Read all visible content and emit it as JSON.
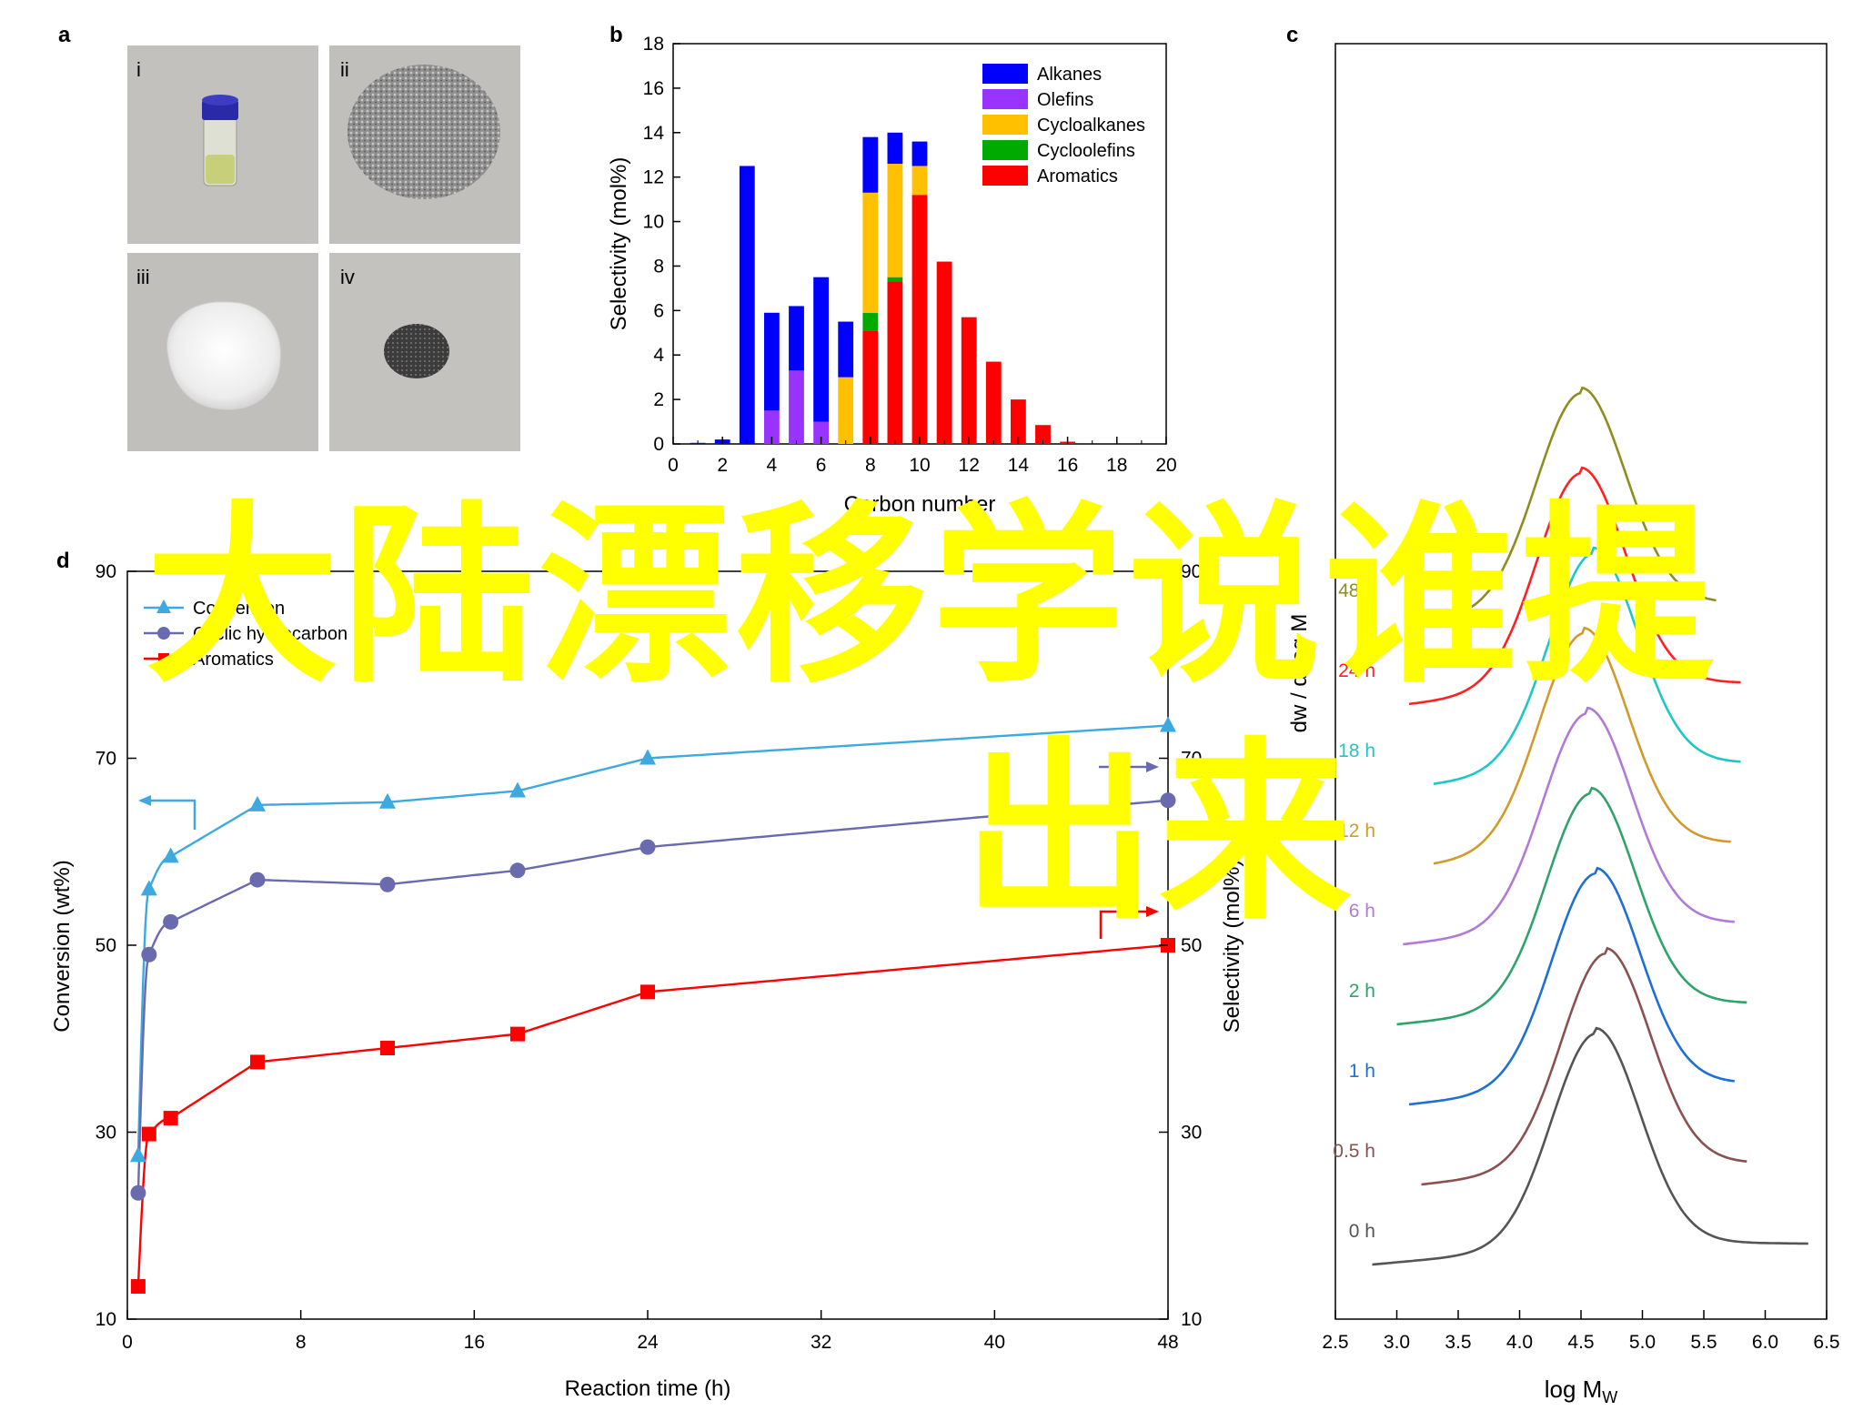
{
  "panel_labels": {
    "a": "a",
    "b": "b",
    "c": "c",
    "d": "d"
  },
  "panel_a": {
    "photos": [
      {
        "label": "i",
        "subject": "vial-with-liquid"
      },
      {
        "label": "ii",
        "subject": "grey-powder-pile"
      },
      {
        "label": "iii",
        "subject": "white-powder-pile"
      },
      {
        "label": "iv",
        "subject": "dark-powder-pile"
      }
    ]
  },
  "overlay": {
    "line1": "大陆漂移学说谁提",
    "line2": "出来",
    "color": "#ffff00"
  },
  "chart_data": [
    {
      "type": "bar",
      "panel": "b",
      "xlabel": "Carbon number",
      "ylabel": "Selectivity (mol%)",
      "xlim": [
        0,
        20
      ],
      "ylim": [
        0,
        18
      ],
      "xticks": [
        0,
        2,
        4,
        6,
        8,
        10,
        12,
        14,
        16,
        18,
        20
      ],
      "yticks": [
        0,
        2,
        4,
        6,
        8,
        10,
        12,
        14,
        16,
        18
      ],
      "stacked": true,
      "legend_position": "top-right",
      "categories": [
        1,
        2,
        3,
        4,
        5,
        6,
        7,
        8,
        9,
        10,
        11,
        12,
        13,
        14,
        15,
        16,
        17,
        18,
        19
      ],
      "series": [
        {
          "name": "Aromatics",
          "color": "#ff0000",
          "values": [
            0,
            0,
            0,
            0,
            0,
            0,
            0,
            5.1,
            7.3,
            11.2,
            8.2,
            5.7,
            3.7,
            2.0,
            0.85,
            0.1,
            0,
            0,
            0
          ]
        },
        {
          "name": "Cycloolefins",
          "color": "#00aa00",
          "values": [
            0,
            0,
            0,
            0,
            0,
            0,
            0,
            0.8,
            0.2,
            0,
            0,
            0,
            0,
            0,
            0,
            0,
            0,
            0,
            0
          ]
        },
        {
          "name": "Cycloalkanes",
          "color": "#ffc000",
          "values": [
            0,
            0,
            0,
            0,
            0,
            0,
            3.0,
            5.4,
            5.1,
            1.3,
            0,
            0,
            0,
            0,
            0,
            0,
            0,
            0,
            0
          ]
        },
        {
          "name": "Olefins",
          "color": "#9933ff",
          "values": [
            0,
            0,
            0,
            1.5,
            3.3,
            1.0,
            0,
            0,
            0,
            0,
            0,
            0,
            0,
            0,
            0,
            0,
            0,
            0,
            0
          ]
        },
        {
          "name": "Alkanes",
          "color": "#0000ff",
          "values": [
            0.05,
            0.2,
            12.5,
            4.4,
            2.9,
            6.5,
            2.5,
            2.5,
            1.4,
            1.1,
            0,
            0,
            0,
            0,
            0,
            0,
            0,
            0,
            0
          ]
        }
      ]
    },
    {
      "type": "line",
      "panel": "c",
      "xlabel": "log M",
      "xlabel_sub": "W",
      "ylabel": "dw / d(log M",
      "xlim": [
        2.5,
        6.5
      ],
      "xticks": [
        "2.5",
        "3.0",
        "3.5",
        "4.0",
        "4.5",
        "5.0",
        "5.5",
        "6.0",
        "6.5"
      ],
      "series": [
        {
          "name": "0 h",
          "color": "#555555",
          "xrange": [
            2.8,
            6.35
          ],
          "peak_x": 4.62
        },
        {
          "name": "0.5 h",
          "color": "#8b5050",
          "xrange": [
            3.2,
            5.85
          ],
          "peak_x": 4.7
        },
        {
          "name": "1 h",
          "color": "#1f6fd6",
          "xrange": [
            3.1,
            5.75
          ],
          "peak_x": 4.62
        },
        {
          "name": "2 h",
          "color": "#2ea36b",
          "xrange": [
            3.0,
            5.85
          ],
          "peak_x": 4.58
        },
        {
          "name": "6 h",
          "color": "#b07ad6",
          "xrange": [
            3.05,
            5.75
          ],
          "peak_x": 4.55
        },
        {
          "name": "12 h",
          "color": "#d19a2a",
          "xrange": [
            3.3,
            5.72
          ],
          "peak_x": 4.52
        },
        {
          "name": "18 h",
          "color": "#20c6c6",
          "xrange": [
            3.3,
            5.8
          ],
          "peak_x": 4.6
        },
        {
          "name": "24 h",
          "color": "#ff2020",
          "xrange": [
            3.1,
            5.8
          ],
          "peak_x": 4.5
        },
        {
          "name": "48 h",
          "color": "#8e8e1e",
          "xrange": [
            3.1,
            5.6
          ],
          "peak_x": 4.5
        }
      ]
    },
    {
      "type": "scatter",
      "panel": "d",
      "xlabel": "Reaction time (h)",
      "ylabel": "Conversion (wt%)",
      "ylabel_right": "Selectivity (mol%)",
      "xlim": [
        0,
        48
      ],
      "ylim": [
        10,
        90
      ],
      "xticks": [
        0,
        8,
        16,
        24,
        32,
        40,
        48
      ],
      "yticks": [
        10,
        30,
        50,
        70,
        90
      ],
      "legend_position": "top-left",
      "x": [
        0.5,
        1,
        2,
        6,
        12,
        18,
        24,
        48
      ],
      "series": [
        {
          "name": "Conversion",
          "axis": "left",
          "marker": "triangle",
          "color": "#3da9e0",
          "values": [
            27.5,
            56,
            59.5,
            65,
            65.3,
            66.5,
            70,
            73.5
          ]
        },
        {
          "name": "Cyclic hydrocarbon",
          "axis": "right",
          "marker": "circle",
          "color": "#6a6aaf",
          "values": [
            23.5,
            49,
            52.5,
            57,
            56.5,
            58,
            60.5,
            65.5
          ]
        },
        {
          "name": "Aromatics",
          "axis": "right",
          "marker": "square",
          "color": "#ff0000",
          "values": [
            13.5,
            29.8,
            31.5,
            37.5,
            39,
            40.5,
            45,
            50
          ]
        }
      ]
    }
  ]
}
